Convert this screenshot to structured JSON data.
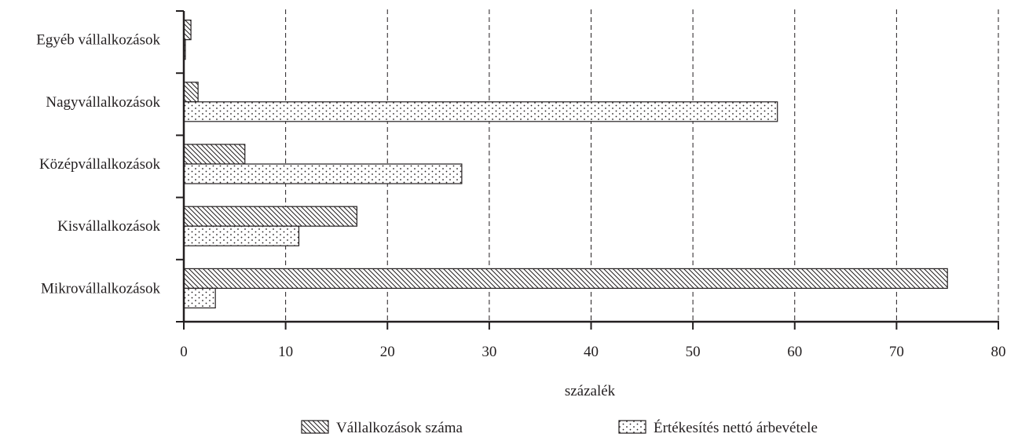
{
  "chart_data": {
    "type": "bar",
    "orientation": "horizontal",
    "categories": [
      "Egyéb vállalkozások",
      "Nagyvállalkozások",
      "Középvállalkozások",
      "Kisvállalkozások",
      "Mikrovállalkozások"
    ],
    "series": [
      {
        "name": "Vállalkozások száma",
        "values": [
          0.7,
          1.4,
          6.0,
          17.0,
          75.0
        ],
        "pattern": "diagonal-hatch"
      },
      {
        "name": "Értékesítés nettó árbevétele",
        "values": [
          0.15,
          58.3,
          27.3,
          11.3,
          3.1
        ],
        "pattern": "dots"
      }
    ],
    "xlabel": "százalék",
    "xlim": [
      0,
      80
    ],
    "xticks": [
      0,
      10,
      20,
      30,
      40,
      50,
      60,
      70,
      80
    ],
    "xtick_labels": [
      "0",
      "10",
      "20",
      "30",
      "40",
      "50",
      "60",
      "70",
      "80"
    ],
    "grid": "vertical dashed",
    "legend_placement": "bottom",
    "colors": {
      "ink": "#231f20",
      "background": "#ffffff"
    }
  }
}
